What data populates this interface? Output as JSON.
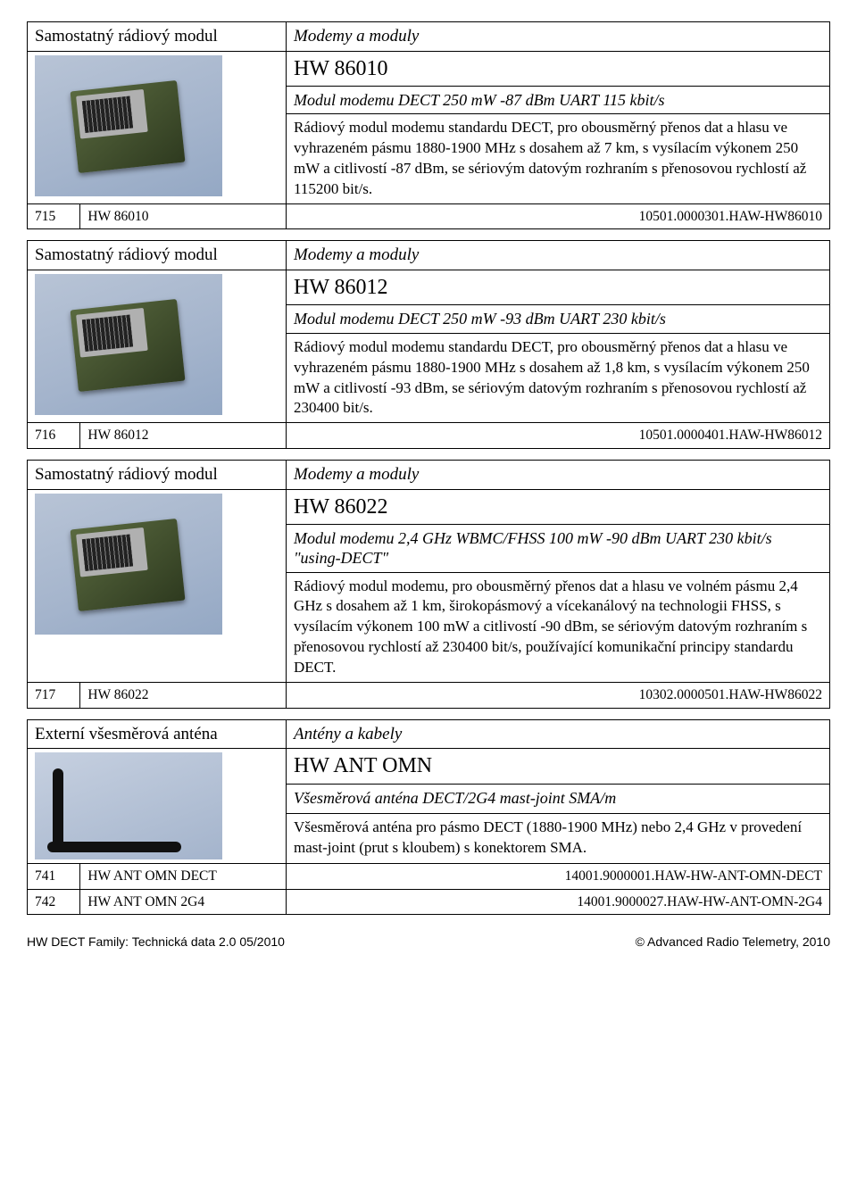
{
  "entries": [
    {
      "header_left": "Samostatný rádiový modul",
      "header_right": "Modemy a moduly",
      "title": "HW 86010",
      "subtitle": "Modul modemu DECT 250 mW -87 dBm UART 115 kbit/s",
      "description": "Rádiový modul modemu standardu DECT, pro obousměrný přenos dat a hlasu ve vyhrazeném pásmu 1880-1900 MHz s dosahem až 7 km, s vysílacím výkonem 250 mW a citlivostí -87 dBm, se sériovým datovým rozhraním s přenosovou rychlostí až 115200 bit/s.",
      "codes": [
        {
          "idx": "715",
          "sku": "HW 86010",
          "ref": "10501.0000301.HAW-HW86010"
        }
      ],
      "image_type": "pcb"
    },
    {
      "header_left": "Samostatný rádiový modul",
      "header_right": "Modemy a moduly",
      "title": "HW 86012",
      "subtitle": "Modul modemu DECT 250 mW -93 dBm UART 230 kbit/s",
      "description": "Rádiový modul modemu standardu DECT, pro obousměrný přenos dat a hlasu ve vyhrazeném pásmu 1880-1900 MHz s dosahem až 1,8 km, s vysílacím výkonem 250 mW a citlivostí -93 dBm, se sériovým datovým rozhraním s přenosovou rychlostí až 230400 bit/s.",
      "codes": [
        {
          "idx": "716",
          "sku": "HW 86012",
          "ref": "10501.0000401.HAW-HW86012"
        }
      ],
      "image_type": "pcb"
    },
    {
      "header_left": "Samostatný rádiový modul",
      "header_right": "Modemy a moduly",
      "title": "HW 86022",
      "subtitle": "Modul modemu 2,4 GHz WBMC/FHSS 100 mW -90 dBm UART 230 kbit/s \"using-DECT\"",
      "description": "Rádiový modul modemu, pro obousměrný přenos dat a hlasu ve volném pásmu 2,4 GHz s dosahem až 1 km, širokopásmový a vícekanálový na technologii FHSS, s vysílacím výkonem 100 mW a citlivostí -90 dBm, se sériovým datovým rozhraním s přenosovou rychlostí až 230400 bit/s, používající komunikační principy standardu DECT.",
      "codes": [
        {
          "idx": "717",
          "sku": "HW 86022",
          "ref": "10302.0000501.HAW-HW86022"
        }
      ],
      "image_type": "pcb"
    },
    {
      "header_left": "Externí všesměrová anténa",
      "header_right": "Antény a kabely",
      "title": "HW ANT OMN",
      "subtitle": "Všesměrová anténa DECT/2G4 mast-joint SMA/m",
      "description": "Všesměrová anténa pro pásmo DECT (1880-1900 MHz) nebo 2,4 GHz v provedení mast-joint (prut s kloubem) s konektorem SMA.",
      "codes": [
        {
          "idx": "741",
          "sku": "HW ANT OMN DECT",
          "ref": "14001.9000001.HAW-HW-ANT-OMN-DECT"
        },
        {
          "idx": "742",
          "sku": "HW ANT OMN 2G4",
          "ref": "14001.9000027.HAW-HW-ANT-OMN-2G4"
        }
      ],
      "image_type": "antenna"
    }
  ],
  "footer": {
    "left": "HW DECT Family: Technická data  2.0  05/2010",
    "right": "© Advanced Radio Telemetry, 2010"
  },
  "style": {
    "border_color": "#000000",
    "background": "#ffffff",
    "text_color": "#000000",
    "font_family": "Times New Roman",
    "title_fontsize_pt": 18,
    "subtitle_fontsize_pt": 13,
    "body_fontsize_pt": 12,
    "footer_font_family": "Arial",
    "footer_fontsize_pt": 10
  }
}
